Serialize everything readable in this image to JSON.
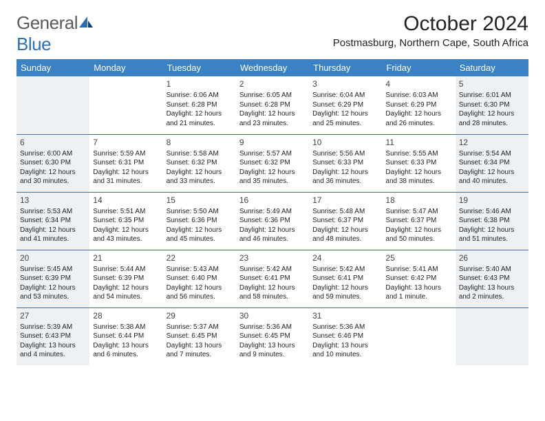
{
  "brand": {
    "name": "General",
    "suffix": "Blue"
  },
  "title": "October 2024",
  "location": "Postmasburg, Northern Cape, South Africa",
  "colors": {
    "header_bg": "#3b82c4",
    "header_text": "#ffffff",
    "row_divider": "#3b6fa0",
    "shade_bg": "#eef1f4",
    "text": "#222222",
    "logo_gray": "#5a5a5a",
    "logo_blue": "#2f6fb0"
  },
  "day_headers": [
    "Sunday",
    "Monday",
    "Tuesday",
    "Wednesday",
    "Thursday",
    "Friday",
    "Saturday"
  ],
  "weeks": [
    [
      {
        "num": "",
        "sunrise": "",
        "sunset": "",
        "daylight": "",
        "shade": true
      },
      {
        "num": "",
        "sunrise": "",
        "sunset": "",
        "daylight": "",
        "shade": false
      },
      {
        "num": "1",
        "sunrise": "Sunrise: 6:06 AM",
        "sunset": "Sunset: 6:28 PM",
        "daylight": "Daylight: 12 hours and 21 minutes.",
        "shade": false
      },
      {
        "num": "2",
        "sunrise": "Sunrise: 6:05 AM",
        "sunset": "Sunset: 6:28 PM",
        "daylight": "Daylight: 12 hours and 23 minutes.",
        "shade": false
      },
      {
        "num": "3",
        "sunrise": "Sunrise: 6:04 AM",
        "sunset": "Sunset: 6:29 PM",
        "daylight": "Daylight: 12 hours and 25 minutes.",
        "shade": false
      },
      {
        "num": "4",
        "sunrise": "Sunrise: 6:03 AM",
        "sunset": "Sunset: 6:29 PM",
        "daylight": "Daylight: 12 hours and 26 minutes.",
        "shade": false
      },
      {
        "num": "5",
        "sunrise": "Sunrise: 6:01 AM",
        "sunset": "Sunset: 6:30 PM",
        "daylight": "Daylight: 12 hours and 28 minutes.",
        "shade": true
      }
    ],
    [
      {
        "num": "6",
        "sunrise": "Sunrise: 6:00 AM",
        "sunset": "Sunset: 6:30 PM",
        "daylight": "Daylight: 12 hours and 30 minutes.",
        "shade": true
      },
      {
        "num": "7",
        "sunrise": "Sunrise: 5:59 AM",
        "sunset": "Sunset: 6:31 PM",
        "daylight": "Daylight: 12 hours and 31 minutes.",
        "shade": false
      },
      {
        "num": "8",
        "sunrise": "Sunrise: 5:58 AM",
        "sunset": "Sunset: 6:32 PM",
        "daylight": "Daylight: 12 hours and 33 minutes.",
        "shade": false
      },
      {
        "num": "9",
        "sunrise": "Sunrise: 5:57 AM",
        "sunset": "Sunset: 6:32 PM",
        "daylight": "Daylight: 12 hours and 35 minutes.",
        "shade": false
      },
      {
        "num": "10",
        "sunrise": "Sunrise: 5:56 AM",
        "sunset": "Sunset: 6:33 PM",
        "daylight": "Daylight: 12 hours and 36 minutes.",
        "shade": false
      },
      {
        "num": "11",
        "sunrise": "Sunrise: 5:55 AM",
        "sunset": "Sunset: 6:33 PM",
        "daylight": "Daylight: 12 hours and 38 minutes.",
        "shade": false
      },
      {
        "num": "12",
        "sunrise": "Sunrise: 5:54 AM",
        "sunset": "Sunset: 6:34 PM",
        "daylight": "Daylight: 12 hours and 40 minutes.",
        "shade": true
      }
    ],
    [
      {
        "num": "13",
        "sunrise": "Sunrise: 5:53 AM",
        "sunset": "Sunset: 6:34 PM",
        "daylight": "Daylight: 12 hours and 41 minutes.",
        "shade": true
      },
      {
        "num": "14",
        "sunrise": "Sunrise: 5:51 AM",
        "sunset": "Sunset: 6:35 PM",
        "daylight": "Daylight: 12 hours and 43 minutes.",
        "shade": false
      },
      {
        "num": "15",
        "sunrise": "Sunrise: 5:50 AM",
        "sunset": "Sunset: 6:36 PM",
        "daylight": "Daylight: 12 hours and 45 minutes.",
        "shade": false
      },
      {
        "num": "16",
        "sunrise": "Sunrise: 5:49 AM",
        "sunset": "Sunset: 6:36 PM",
        "daylight": "Daylight: 12 hours and 46 minutes.",
        "shade": false
      },
      {
        "num": "17",
        "sunrise": "Sunrise: 5:48 AM",
        "sunset": "Sunset: 6:37 PM",
        "daylight": "Daylight: 12 hours and 48 minutes.",
        "shade": false
      },
      {
        "num": "18",
        "sunrise": "Sunrise: 5:47 AM",
        "sunset": "Sunset: 6:37 PM",
        "daylight": "Daylight: 12 hours and 50 minutes.",
        "shade": false
      },
      {
        "num": "19",
        "sunrise": "Sunrise: 5:46 AM",
        "sunset": "Sunset: 6:38 PM",
        "daylight": "Daylight: 12 hours and 51 minutes.",
        "shade": true
      }
    ],
    [
      {
        "num": "20",
        "sunrise": "Sunrise: 5:45 AM",
        "sunset": "Sunset: 6:39 PM",
        "daylight": "Daylight: 12 hours and 53 minutes.",
        "shade": true
      },
      {
        "num": "21",
        "sunrise": "Sunrise: 5:44 AM",
        "sunset": "Sunset: 6:39 PM",
        "daylight": "Daylight: 12 hours and 54 minutes.",
        "shade": false
      },
      {
        "num": "22",
        "sunrise": "Sunrise: 5:43 AM",
        "sunset": "Sunset: 6:40 PM",
        "daylight": "Daylight: 12 hours and 56 minutes.",
        "shade": false
      },
      {
        "num": "23",
        "sunrise": "Sunrise: 5:42 AM",
        "sunset": "Sunset: 6:41 PM",
        "daylight": "Daylight: 12 hours and 58 minutes.",
        "shade": false
      },
      {
        "num": "24",
        "sunrise": "Sunrise: 5:42 AM",
        "sunset": "Sunset: 6:41 PM",
        "daylight": "Daylight: 12 hours and 59 minutes.",
        "shade": false
      },
      {
        "num": "25",
        "sunrise": "Sunrise: 5:41 AM",
        "sunset": "Sunset: 6:42 PM",
        "daylight": "Daylight: 13 hours and 1 minute.",
        "shade": false
      },
      {
        "num": "26",
        "sunrise": "Sunrise: 5:40 AM",
        "sunset": "Sunset: 6:43 PM",
        "daylight": "Daylight: 13 hours and 2 minutes.",
        "shade": true
      }
    ],
    [
      {
        "num": "27",
        "sunrise": "Sunrise: 5:39 AM",
        "sunset": "Sunset: 6:43 PM",
        "daylight": "Daylight: 13 hours and 4 minutes.",
        "shade": true
      },
      {
        "num": "28",
        "sunrise": "Sunrise: 5:38 AM",
        "sunset": "Sunset: 6:44 PM",
        "daylight": "Daylight: 13 hours and 6 minutes.",
        "shade": false
      },
      {
        "num": "29",
        "sunrise": "Sunrise: 5:37 AM",
        "sunset": "Sunset: 6:45 PM",
        "daylight": "Daylight: 13 hours and 7 minutes.",
        "shade": false
      },
      {
        "num": "30",
        "sunrise": "Sunrise: 5:36 AM",
        "sunset": "Sunset: 6:45 PM",
        "daylight": "Daylight: 13 hours and 9 minutes.",
        "shade": false
      },
      {
        "num": "31",
        "sunrise": "Sunrise: 5:36 AM",
        "sunset": "Sunset: 6:46 PM",
        "daylight": "Daylight: 13 hours and 10 minutes.",
        "shade": false
      },
      {
        "num": "",
        "sunrise": "",
        "sunset": "",
        "daylight": "",
        "shade": false
      },
      {
        "num": "",
        "sunrise": "",
        "sunset": "",
        "daylight": "",
        "shade": true
      }
    ]
  ]
}
